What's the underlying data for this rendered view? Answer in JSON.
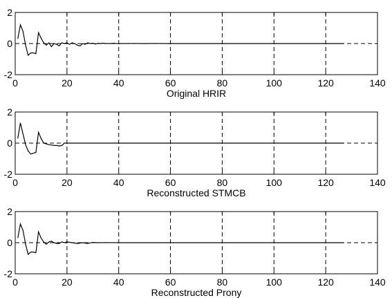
{
  "chart_data": [
    {
      "type": "line",
      "xlabel": "Original HRIR",
      "ylabel": "",
      "xlim": [
        0,
        140
      ],
      "ylim": [
        -2,
        2
      ],
      "xticks": [
        0,
        20,
        40,
        60,
        80,
        100,
        120,
        140
      ],
      "yticks": [
        -2,
        0,
        2
      ],
      "grid": "x-dashed",
      "series": [
        {
          "x": [
            1,
            2,
            3,
            4,
            5,
            6,
            7,
            8,
            9,
            10,
            11,
            12,
            13,
            14,
            15,
            16,
            17,
            18,
            19,
            20,
            21,
            22,
            23,
            24,
            25,
            26,
            27,
            28,
            29,
            30,
            31,
            32,
            33,
            34,
            35,
            36,
            37,
            38,
            39,
            40,
            45,
            50,
            55,
            60,
            65,
            70,
            80,
            90,
            100,
            110,
            120,
            127
          ],
          "y": [
            0.3,
            1.2,
            0.8,
            -0.1,
            -0.75,
            -0.6,
            -0.6,
            -0.65,
            0.7,
            0.35,
            0.05,
            -0.1,
            0.05,
            -0.2,
            0.0,
            -0.05,
            -0.15,
            0.05,
            0.0,
            0.05,
            -0.05,
            0.05,
            0.0,
            -0.1,
            -0.15,
            0.0,
            -0.05,
            0.05,
            0.0,
            0.02,
            -0.03,
            0.02,
            0.0,
            0.02,
            0.0,
            0.01,
            0.0,
            0.02,
            0.01,
            0.0,
            0.01,
            0.0,
            0.01,
            0.0,
            0.0,
            0.0,
            0.0,
            0.0,
            0.0,
            0.0,
            0.0,
            0.0
          ]
        }
      ]
    },
    {
      "type": "line",
      "xlabel": "Reconstructed STMCB",
      "ylabel": "",
      "xlim": [
        0,
        140
      ],
      "ylim": [
        -2,
        2
      ],
      "xticks": [
        0,
        20,
        40,
        60,
        80,
        100,
        120,
        140
      ],
      "yticks": [
        -2,
        0,
        2
      ],
      "grid": "x-dashed",
      "series": [
        {
          "x": [
            1,
            2,
            3,
            4,
            5,
            6,
            7,
            8,
            9,
            10,
            11,
            12,
            13,
            14,
            15,
            16,
            17,
            18,
            19,
            20,
            30,
            40,
            60,
            80,
            100,
            120,
            127
          ],
          "y": [
            0.3,
            1.3,
            0.6,
            -0.1,
            -0.5,
            -0.7,
            -0.65,
            -0.6,
            0.7,
            0.3,
            0.0,
            -0.05,
            -0.1,
            -0.12,
            -0.15,
            -0.15,
            -0.18,
            -0.15,
            0.0,
            0.0,
            0.0,
            0.0,
            0.0,
            0.0,
            0.0,
            0.0,
            0.0
          ]
        }
      ]
    },
    {
      "type": "line",
      "xlabel": "Reconstructed Prony",
      "ylabel": "",
      "xlim": [
        0,
        140
      ],
      "ylim": [
        -2,
        2
      ],
      "xticks": [
        0,
        20,
        40,
        60,
        80,
        100,
        120,
        140
      ],
      "yticks": [
        -2,
        0,
        2
      ],
      "grid": "x-dashed",
      "series": [
        {
          "x": [
            1,
            2,
            3,
            4,
            5,
            6,
            7,
            8,
            9,
            10,
            11,
            12,
            13,
            14,
            15,
            16,
            17,
            18,
            19,
            20,
            22,
            24,
            26,
            28,
            30,
            32,
            35,
            40,
            50,
            60,
            80,
            100,
            120,
            127
          ],
          "y": [
            0.3,
            1.2,
            0.8,
            -0.1,
            -0.75,
            -0.6,
            -0.6,
            -0.65,
            0.7,
            0.3,
            0.05,
            -0.1,
            0.05,
            0.1,
            0.0,
            -0.05,
            -0.05,
            0.05,
            0.0,
            0.05,
            0.0,
            -0.05,
            0.0,
            -0.05,
            0.02,
            0.0,
            0.01,
            0.0,
            0.0,
            0.0,
            0.0,
            0.0,
            0.0,
            0.0
          ]
        }
      ]
    }
  ]
}
